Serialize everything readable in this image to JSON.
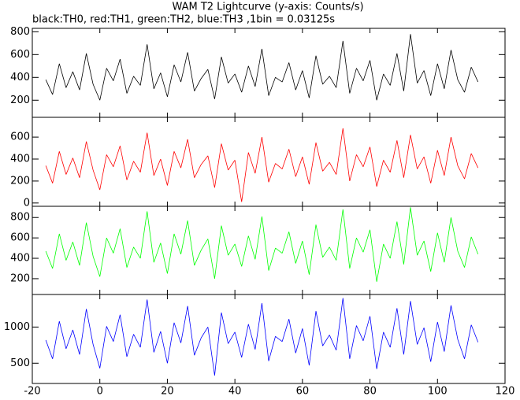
{
  "chart_data": [
    {
      "type": "line",
      "title": "WAM T2 Lightcurve (y-axis: Counts/s)",
      "subtitle": "black:TH0, red:TH1, green:TH2, blue:TH3 ,1bin = 0.03125s",
      "color": "#000000",
      "x": [
        -16,
        -14,
        -12,
        -10,
        -8,
        -6,
        -4,
        -2,
        0,
        2,
        4,
        6,
        8,
        10,
        12,
        14,
        16,
        18,
        20,
        22,
        24,
        26,
        28,
        30,
        32,
        34,
        36,
        38,
        40,
        42,
        44,
        46,
        48,
        50,
        52,
        54,
        56,
        58,
        60,
        62,
        64,
        66,
        68,
        70,
        72,
        74,
        76,
        78,
        80,
        82,
        84,
        86,
        88,
        90,
        92,
        94,
        96,
        98,
        100,
        102,
        104,
        106,
        108,
        110,
        112
      ],
      "values": [
        380,
        250,
        520,
        310,
        450,
        290,
        610,
        340,
        200,
        480,
        370,
        560,
        260,
        410,
        330,
        690,
        300,
        440,
        230,
        510,
        360,
        620,
        280,
        390,
        470,
        210,
        580,
        350,
        430,
        270,
        500,
        320,
        650,
        240,
        400,
        360,
        530,
        290,
        460,
        220,
        590,
        340,
        410,
        310,
        720,
        260,
        480,
        370,
        550,
        200,
        430,
        330,
        610,
        280,
        780,
        350,
        460,
        240,
        520,
        300,
        640,
        380,
        270,
        490,
        360
      ],
      "ylim": [
        50,
        830
      ],
      "yticks": [
        200,
        400,
        600,
        800
      ]
    },
    {
      "type": "line",
      "color": "#ff0000",
      "x": [
        -16,
        -14,
        -12,
        -10,
        -8,
        -6,
        -4,
        -2,
        0,
        2,
        4,
        6,
        8,
        10,
        12,
        14,
        16,
        18,
        20,
        22,
        24,
        26,
        28,
        30,
        32,
        34,
        36,
        38,
        40,
        42,
        44,
        46,
        48,
        50,
        52,
        54,
        56,
        58,
        60,
        62,
        64,
        66,
        68,
        70,
        72,
        74,
        76,
        78,
        80,
        82,
        84,
        86,
        88,
        90,
        92,
        94,
        96,
        98,
        100,
        102,
        104,
        106,
        108,
        110,
        112
      ],
      "values": [
        340,
        180,
        470,
        260,
        410,
        230,
        560,
        300,
        120,
        440,
        330,
        520,
        210,
        380,
        280,
        640,
        250,
        400,
        160,
        470,
        320,
        580,
        230,
        350,
        430,
        140,
        540,
        300,
        390,
        10,
        460,
        270,
        600,
        190,
        360,
        310,
        490,
        240,
        420,
        170,
        550,
        290,
        370,
        260,
        680,
        200,
        440,
        330,
        510,
        150,
        390,
        280,
        570,
        230,
        620,
        310,
        420,
        180,
        480,
        250,
        600,
        340,
        220,
        450,
        320
      ],
      "ylim": [
        -30,
        780
      ],
      "yticks": [
        0,
        200,
        400,
        600
      ]
    },
    {
      "type": "line",
      "color": "#00ff00",
      "x": [
        -16,
        -14,
        -12,
        -10,
        -8,
        -6,
        -4,
        -2,
        0,
        2,
        4,
        6,
        8,
        10,
        12,
        14,
        16,
        18,
        20,
        22,
        24,
        26,
        28,
        30,
        32,
        34,
        36,
        38,
        40,
        42,
        44,
        46,
        48,
        50,
        52,
        54,
        56,
        58,
        60,
        62,
        64,
        66,
        68,
        70,
        72,
        74,
        76,
        78,
        80,
        82,
        84,
        86,
        88,
        90,
        92,
        94,
        96,
        98,
        100,
        102,
        104,
        106,
        108,
        110,
        112
      ],
      "values": [
        470,
        300,
        640,
        380,
        560,
        330,
        750,
        420,
        220,
        600,
        450,
        690,
        310,
        510,
        400,
        860,
        360,
        550,
        250,
        640,
        440,
        770,
        330,
        480,
        590,
        200,
        720,
        430,
        540,
        320,
        620,
        390,
        810,
        280,
        500,
        450,
        660,
        350,
        570,
        240,
        730,
        410,
        510,
        380,
        880,
        300,
        600,
        460,
        680,
        170,
        540,
        400,
        760,
        340,
        900,
        430,
        570,
        270,
        650,
        360,
        800,
        470,
        310,
        610,
        440
      ],
      "ylim": [
        45,
        910
      ],
      "yticks": [
        200,
        400,
        600,
        800
      ]
    },
    {
      "type": "line",
      "color": "#0000ff",
      "x": [
        -16,
        -14,
        -12,
        -10,
        -8,
        -6,
        -4,
        -2,
        0,
        2,
        4,
        6,
        8,
        10,
        12,
        14,
        16,
        18,
        20,
        22,
        24,
        26,
        28,
        30,
        32,
        34,
        36,
        38,
        40,
        42,
        44,
        46,
        48,
        50,
        52,
        54,
        56,
        58,
        60,
        62,
        64,
        66,
        68,
        70,
        72,
        74,
        76,
        78,
        80,
        82,
        84,
        86,
        88,
        90,
        92,
        94,
        96,
        98,
        100,
        102,
        104,
        106,
        108,
        110,
        112
      ],
      "values": [
        820,
        560,
        1080,
        700,
        960,
        620,
        1250,
        760,
        430,
        1010,
        800,
        1170,
        590,
        900,
        720,
        1380,
        650,
        940,
        500,
        1060,
        780,
        1290,
        610,
        850,
        1000,
        330,
        1200,
        770,
        930,
        580,
        1040,
        690,
        1330,
        530,
        870,
        800,
        1110,
        640,
        980,
        470,
        1220,
        740,
        890,
        680,
        1400,
        560,
        1020,
        810,
        1150,
        420,
        930,
        720,
        1260,
        620,
        1360,
        760,
        990,
        520,
        1070,
        660,
        1300,
        830,
        560,
        1030,
        790
      ],
      "ylim": [
        220,
        1450
      ],
      "yticks": [
        500,
        1000
      ],
      "xlim": [
        -20,
        120
      ],
      "xticks": [
        -20,
        0,
        20,
        40,
        60,
        80,
        100,
        120
      ]
    }
  ]
}
